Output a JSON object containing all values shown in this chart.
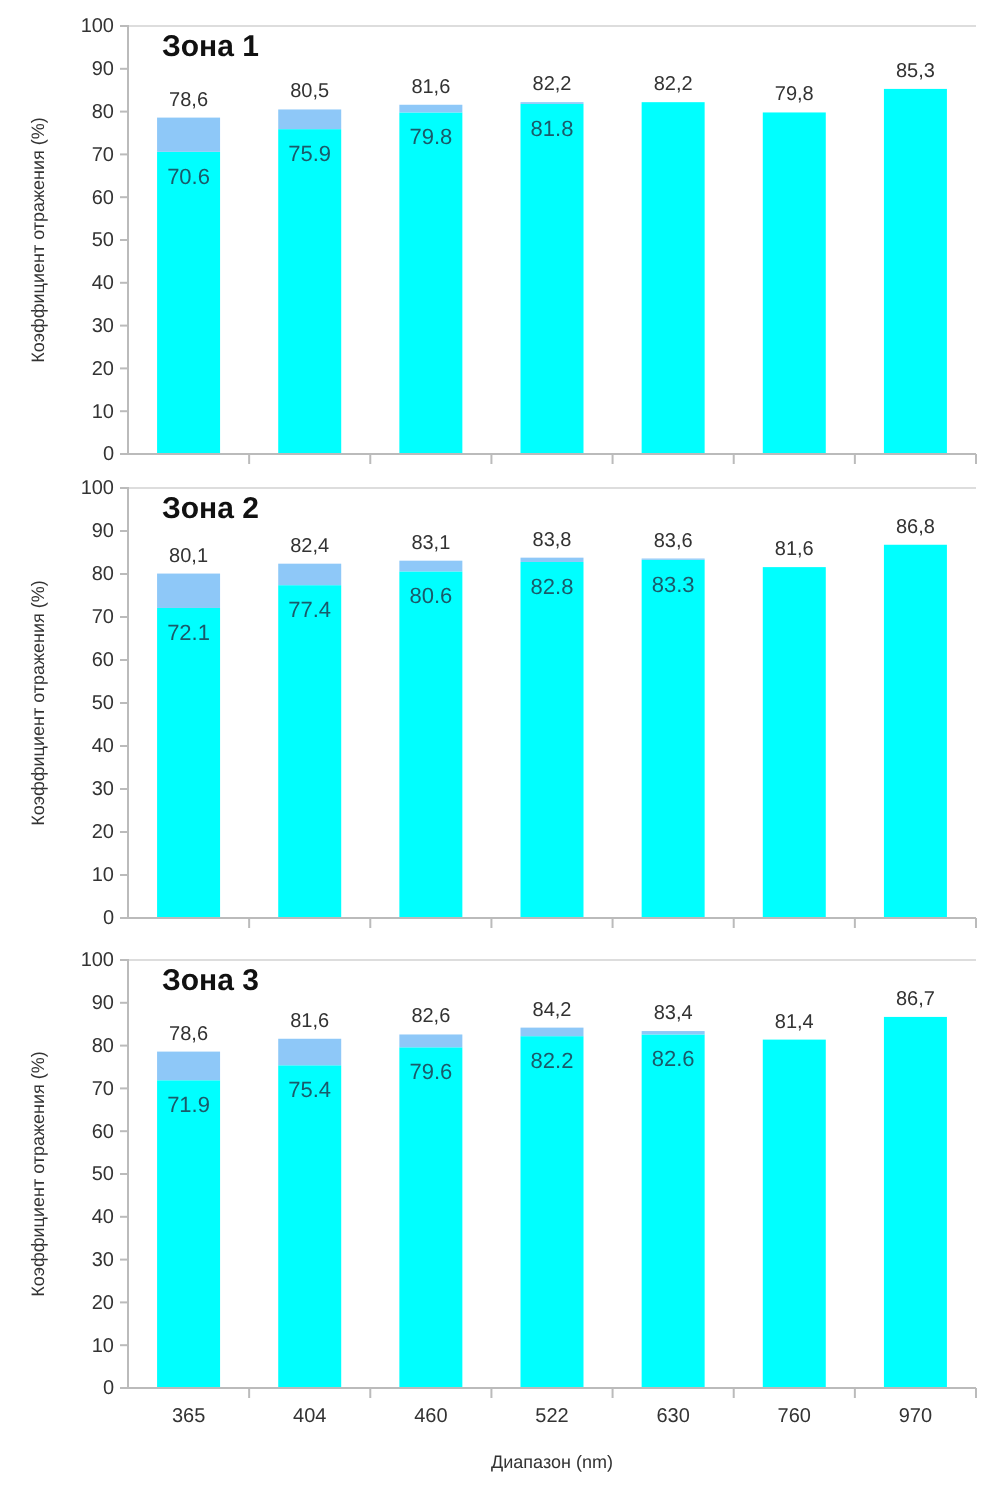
{
  "chart_data": [
    {
      "type": "bar",
      "title": "Зона 1",
      "ylabel": "Коэффициент отражения (%)",
      "categories": [
        "365",
        "404",
        "460",
        "522",
        "630",
        "760",
        "970"
      ],
      "stacked": true,
      "ylim": [
        0,
        100
      ],
      "yticks": [
        0,
        10,
        20,
        30,
        40,
        50,
        60,
        70,
        80,
        90,
        100
      ],
      "tick_labels": "y",
      "series": [
        {
          "color": "#00ffff",
          "values": [
            70.6,
            75.9,
            79.8,
            81.8,
            82.2,
            79.8,
            85.3
          ],
          "value_labels": [
            "70.6",
            "75.9",
            "79.8",
            "81.8",
            null,
            null,
            null
          ]
        },
        {
          "color": "#8ec8f8",
          "values": [
            8.0,
            4.6,
            1.8,
            0.4,
            null,
            null,
            null
          ]
        }
      ],
      "totals": [
        "78,6",
        "80,5",
        "81,6",
        "82,2",
        "82,2",
        "79,8",
        "85,3"
      ]
    },
    {
      "type": "bar",
      "title": "Зона 2",
      "ylabel": "Коэффициент отражения (%)",
      "categories": [
        "365",
        "404",
        "460",
        "522",
        "630",
        "760",
        "970"
      ],
      "stacked": true,
      "ylim": [
        0,
        100
      ],
      "yticks": [
        0,
        10,
        20,
        30,
        40,
        50,
        60,
        70,
        80,
        90,
        100
      ],
      "tick_labels": "y",
      "series": [
        {
          "color": "#00ffff",
          "values": [
            72.1,
            77.4,
            80.6,
            82.8,
            83.3,
            81.6,
            86.8
          ],
          "value_labels": [
            "72.1",
            "77.4",
            "80.6",
            "82.8",
            "83.3",
            null,
            null
          ]
        },
        {
          "color": "#8ec8f8",
          "values": [
            8.0,
            5.0,
            2.5,
            1.0,
            0.3,
            null,
            null
          ]
        }
      ],
      "totals": [
        "80,1",
        "82,4",
        "83,1",
        "83,8",
        "83,6",
        "81,6",
        "86,8"
      ]
    },
    {
      "type": "bar",
      "title": "Зона 3",
      "ylabel": "Коэффициент отражения (%)",
      "xlabel": "Диапазон (nm)",
      "categories": [
        "365",
        "404",
        "460",
        "522",
        "630",
        "760",
        "970"
      ],
      "stacked": true,
      "ylim": [
        0,
        100
      ],
      "yticks": [
        0,
        10,
        20,
        30,
        40,
        50,
        60,
        70,
        80,
        90,
        100
      ],
      "series": [
        {
          "color": "#00ffff",
          "values": [
            71.9,
            75.4,
            79.6,
            82.2,
            82.6,
            81.4,
            86.7
          ],
          "value_labels": [
            "71.9",
            "75.4",
            "79.6",
            "82.2",
            "82.6",
            null,
            null
          ]
        },
        {
          "color": "#8ec8f8",
          "values": [
            6.7,
            6.2,
            3.0,
            2.0,
            0.8,
            null,
            null
          ]
        }
      ],
      "totals": [
        "78,6",
        "81,6",
        "82,6",
        "84,2",
        "83,4",
        "81,4",
        "86,7"
      ]
    }
  ]
}
